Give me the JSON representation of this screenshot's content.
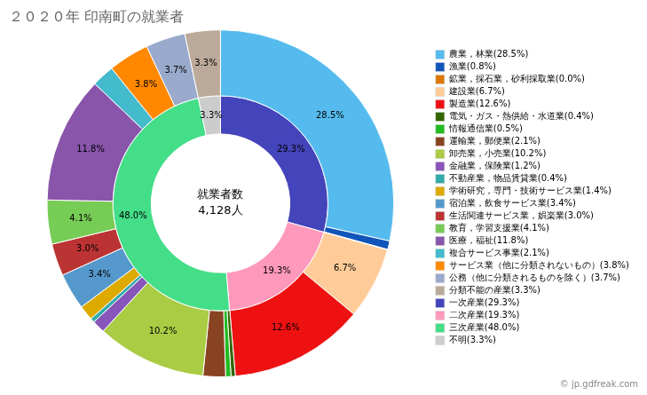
{
  "chart_data": {
    "type": "doughnut",
    "title": "２０２０年 印南町の就業者",
    "subtitle": "© jp.gdfreak.com",
    "annotations": [
      "就業者数",
      "4,128人"
    ],
    "legend": "right",
    "data_labels": true,
    "series": [
      {
        "categories": [
          "農業，林業(28.5%)",
          "漁業(0.8%)",
          "鉱業，採石業，砂利採取業(0.0%)",
          "建設業(6.7%)",
          "製造業(12.6%)",
          "電気・ガス・熱供給・水道業(0.4%)",
          "情報通信業(0.5%)",
          "運輸業，郵便業(2.1%)",
          "卸売業，小売業(10.2%)",
          "金融業，保険業(1.2%)",
          "不動産業，物品賃貸業(0.4%)",
          "学術研究，専門・技術サービス業(1.4%)",
          "宿泊業，飲食サービス業(3.4%)",
          "生活関連サービス業，娯楽業(3.0%)",
          "教育，学習支援業(4.1%)",
          "医療，福祉(11.8%)",
          "複合サービス事業(2.1%)",
          "サービス業（他に分類されないもの）(3.8%)",
          "公務（他に分類されるものを除く）(3.7%)",
          "分類不能の産業(3.3%)"
        ],
        "values": [
          28.5,
          0.8,
          0.05,
          6.7,
          12.6,
          0.4,
          0.5,
          2.1,
          10.2,
          1.2,
          0.4,
          1.4,
          3.4,
          3.0,
          4.1,
          11.8,
          2.1,
          3.8,
          3.7,
          3.3
        ],
        "value_labels": [
          "28.5%",
          null,
          null,
          "6.7%",
          "12.6%",
          null,
          null,
          null,
          "10.2%",
          null,
          null,
          null,
          "3.4%",
          "3.0%",
          "4.1%",
          "11.8%",
          null,
          "3.8%",
          "3.7%",
          "3.3%"
        ],
        "colors": [
          "#55BBEE",
          "#1155BB",
          "#DD7700",
          "#FFCC99",
          "#EE1111",
          "#336600",
          "#22BB22",
          "#884422",
          "#AACC44",
          "#8855BB",
          "#33AAAA",
          "#DDAA00",
          "#5599CC",
          "#BB3333",
          "#77CC55",
          "#8855AA",
          "#44BBCC",
          "#FF8800",
          "#99AACC",
          "#BBAA99"
        ]
      },
      {
        "categories": [
          "一次産業(29.3%)",
          "二次産業(19.3%)",
          "三次産業(48.0%)",
          "不明(3.3%)"
        ],
        "values": [
          29.3,
          19.3,
          48.0,
          3.3
        ],
        "value_labels": [
          "29.3%",
          "19.3%",
          "48.0%",
          "3.3%"
        ],
        "colors": [
          "#4444BB",
          "#FF99BB",
          "#44DD88",
          "#CCCCCC"
        ]
      }
    ]
  }
}
